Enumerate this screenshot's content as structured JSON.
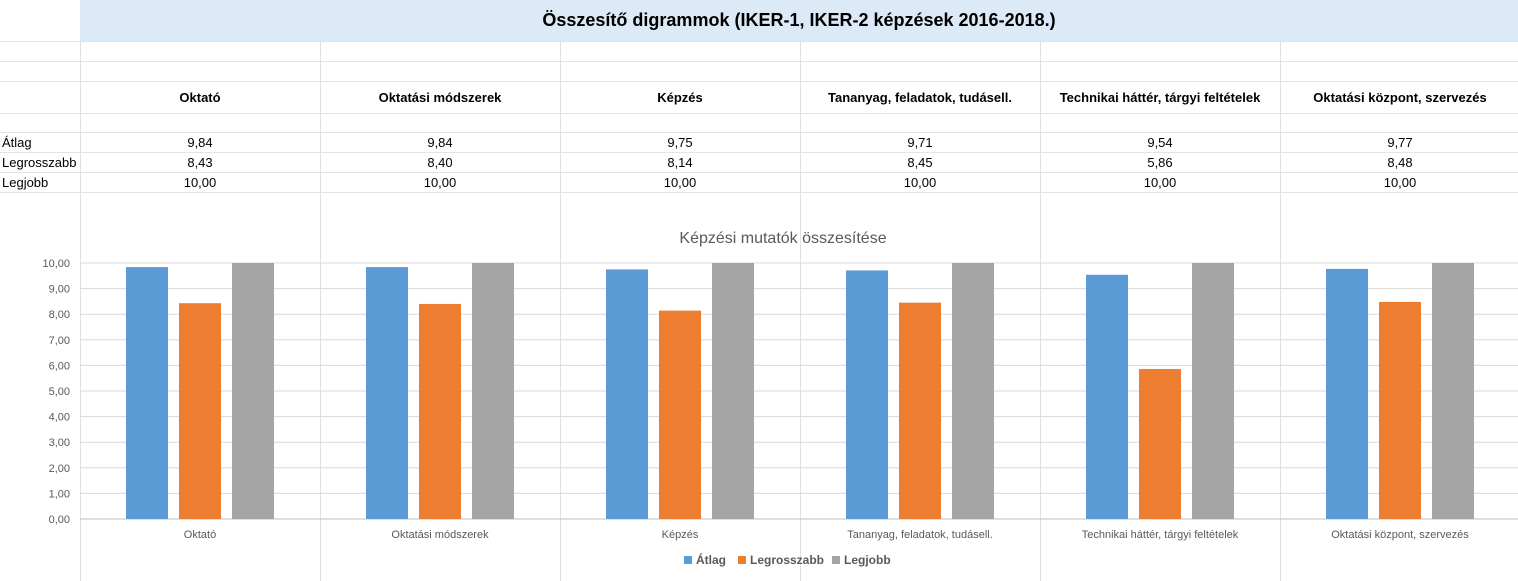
{
  "sheet": {
    "title": "Összesítő digrammok (IKER-1, IKER-2 képzések 2016-2018.)",
    "columns": [
      "Oktató",
      "Oktatási módszerek",
      "Képzés",
      "Tananyag, feladatok, tudásell.",
      "Technikai háttér, tárgyi feltételek",
      "Oktatási központ, szervezés"
    ],
    "rows": [
      {
        "label": "Átlag",
        "values": [
          "9,84",
          "9,84",
          "9,75",
          "9,71",
          "9,54",
          "9,77"
        ]
      },
      {
        "label": "Legrosszabb",
        "values": [
          "8,43",
          "8,40",
          "8,14",
          "8,45",
          "5,86",
          "8,48"
        ]
      },
      {
        "label": "Legjobb",
        "values": [
          "10,00",
          "10,00",
          "10,00",
          "10,00",
          "10,00",
          "10,00"
        ]
      }
    ]
  },
  "chart_data": {
    "type": "bar",
    "title": "Képzési mutatók összesítése",
    "categories": [
      "Oktató",
      "Oktatási módszerek",
      "Képzés",
      "Tananyag, feladatok, tudásell.",
      "Technikai háttér, tárgyi feltételek",
      "Oktatási központ, szervezés"
    ],
    "series": [
      {
        "name": "Átlag",
        "color": "#5b9bd5",
        "values": [
          9.84,
          9.84,
          9.75,
          9.71,
          9.54,
          9.77
        ]
      },
      {
        "name": "Legrosszabb",
        "color": "#ed7d31",
        "values": [
          8.43,
          8.4,
          8.14,
          8.45,
          5.86,
          8.48
        ]
      },
      {
        "name": "Legjobb",
        "color": "#a5a5a5",
        "values": [
          10.0,
          10.0,
          10.0,
          10.0,
          10.0,
          10.0
        ]
      }
    ],
    "ylim": [
      0,
      10
    ],
    "yticks": [
      "0,00",
      "1,00",
      "2,00",
      "3,00",
      "4,00",
      "5,00",
      "6,00",
      "7,00",
      "8,00",
      "9,00",
      "10,00"
    ],
    "grid": true,
    "legend": "bottom"
  }
}
